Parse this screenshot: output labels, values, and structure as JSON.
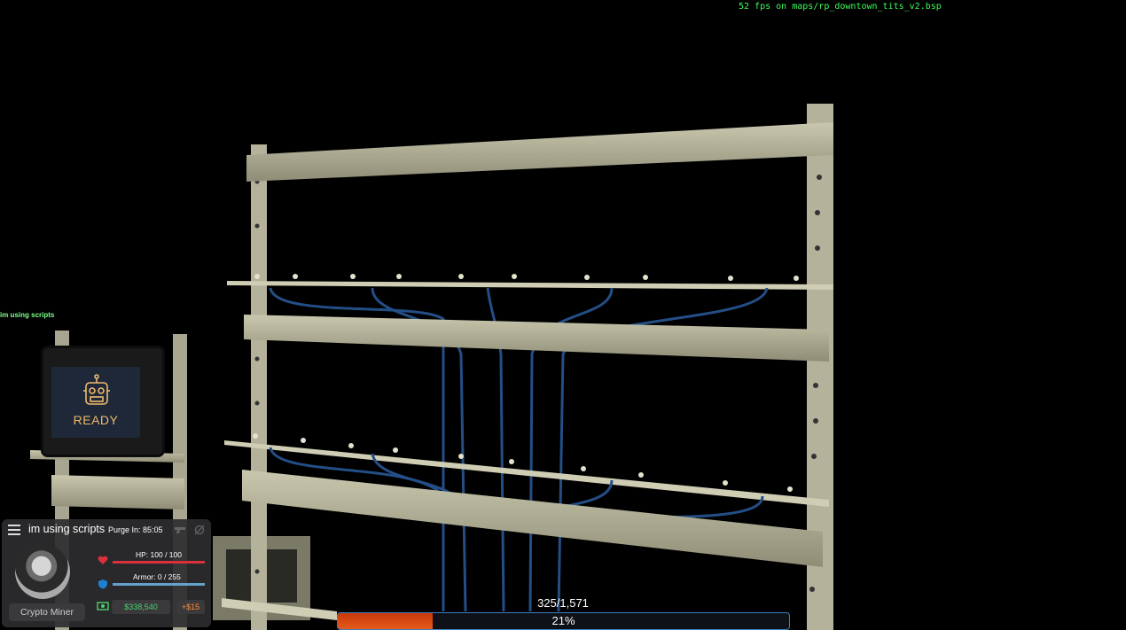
{
  "debug": {
    "fps_text": "52 fps on maps/rp_downtown_tits_v2.bsp"
  },
  "chat": {
    "message": "im using scripts"
  },
  "monitor": {
    "status": "READY",
    "icon": "robot-icon",
    "accent": "#f0b96e"
  },
  "hud": {
    "menu_icon": "hamburger-icon",
    "player_name": "im using scripts",
    "purge_text": "Purge  In: 85:05",
    "job": "Crypto Miner",
    "hp_text": "HP: 100 / 100",
    "hp_fraction": 1.0,
    "hp_color": "#d8313b",
    "armor_text": "Armor: 0 / 255",
    "armor_fraction": 0.0,
    "armor_color": "#6fb6e6",
    "money": "$338,540",
    "salary": "+$15",
    "money_color": "#4ed06b"
  },
  "progress": {
    "count": "325/1,571",
    "percent_text": "21%",
    "fraction": 0.21,
    "fill_color": "#d84512"
  }
}
